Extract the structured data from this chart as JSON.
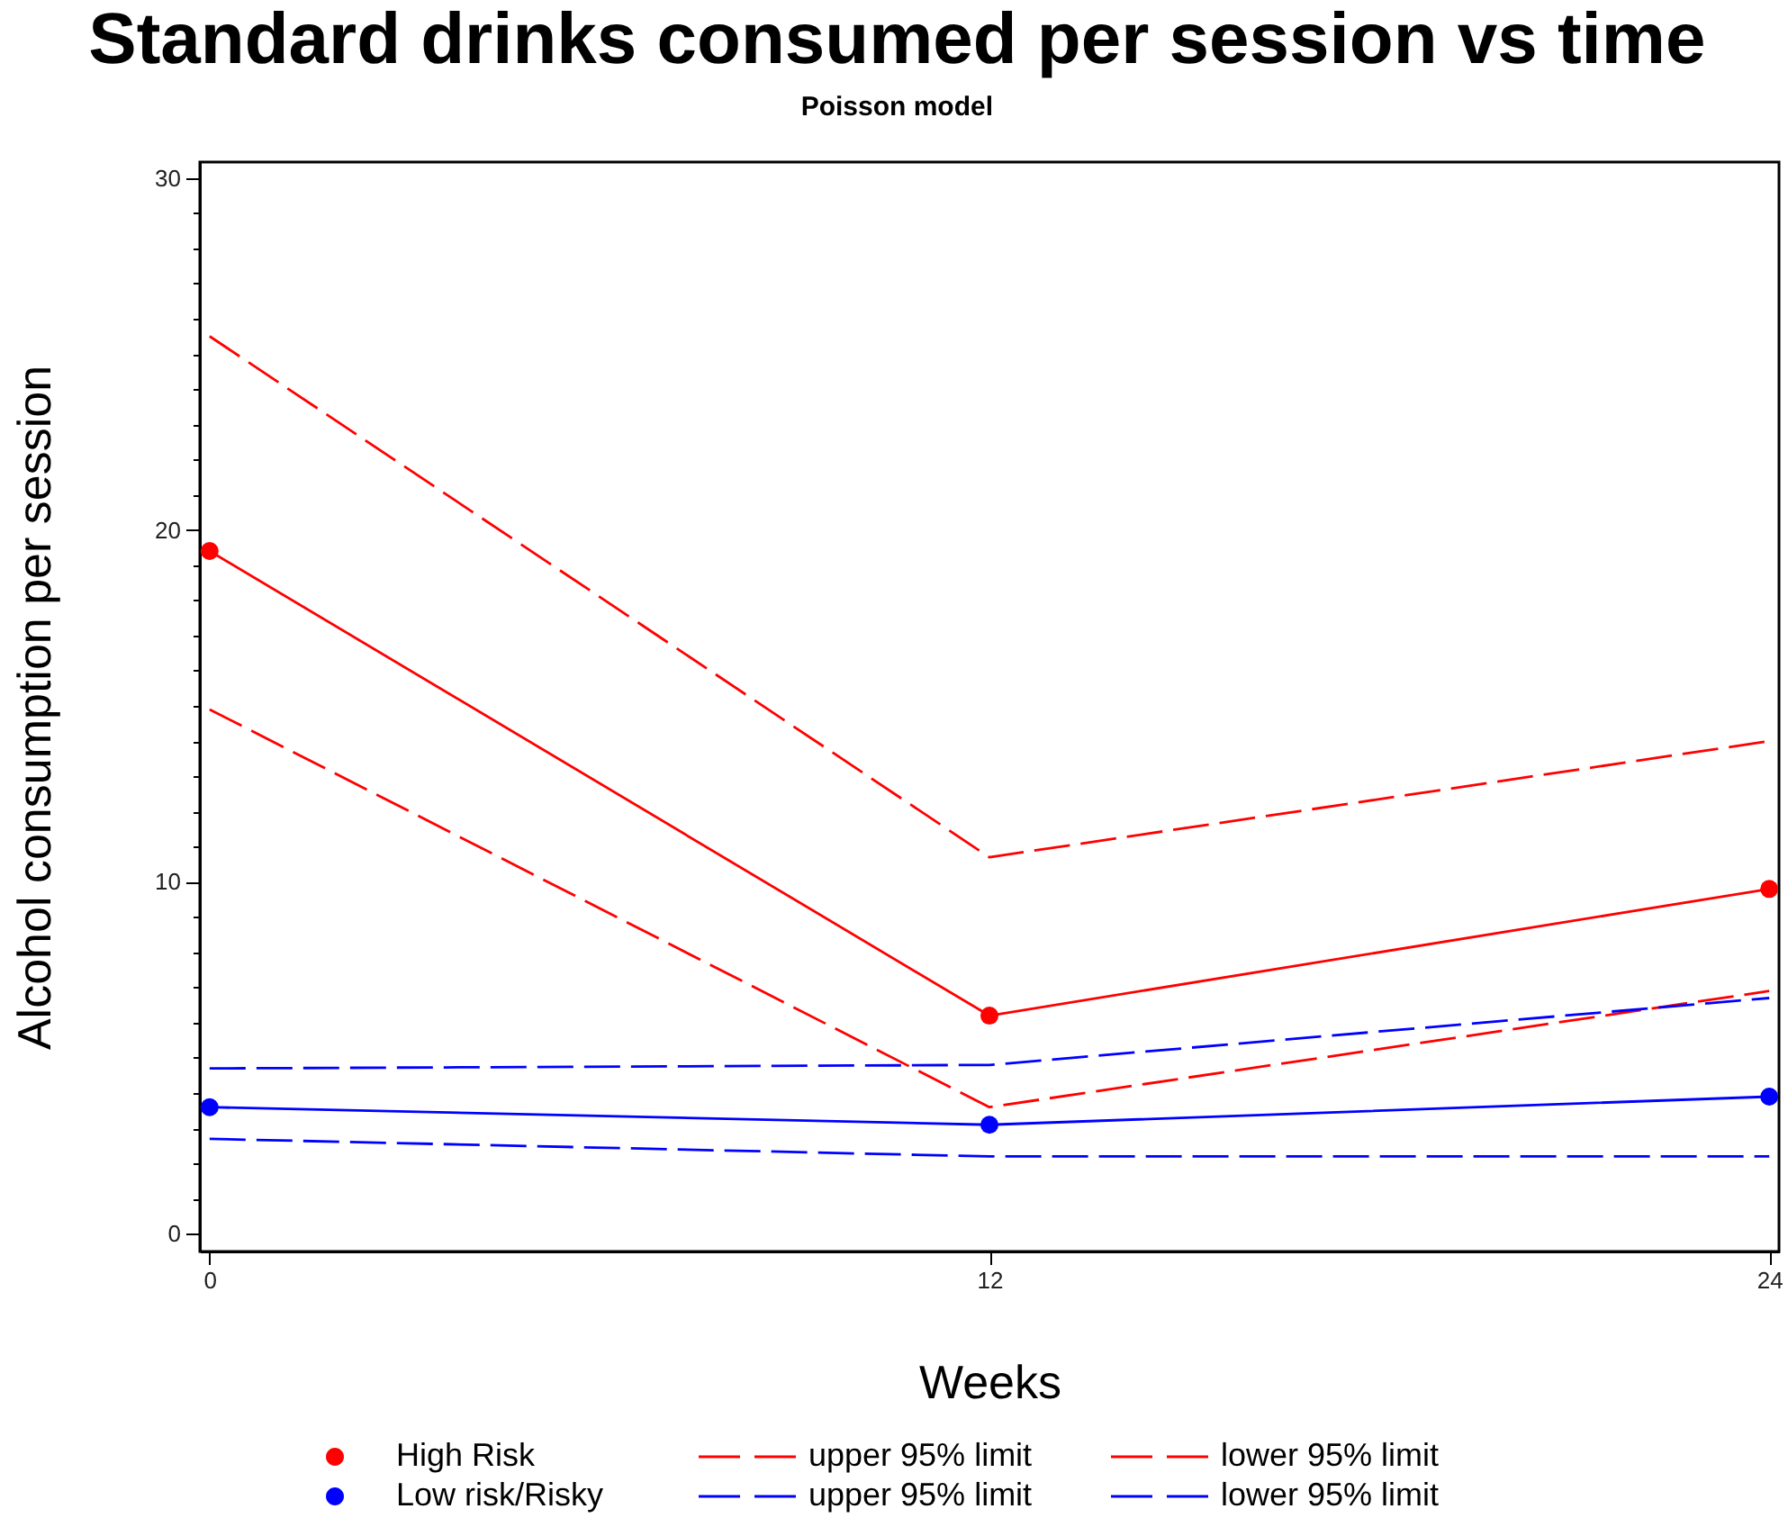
{
  "chart_data": {
    "type": "line",
    "title": "Standard drinks consumed per session vs time",
    "subtitle": "Poisson model",
    "xlabel": "Weeks",
    "ylabel": "Alcohol consumption per session",
    "x": [
      0,
      12,
      24
    ],
    "series": [
      {
        "name": "High Risk",
        "color": "#ff0000",
        "values": [
          19.4,
          6.2,
          9.8
        ],
        "marker": "circle",
        "line_style": "solid"
      },
      {
        "name": "upper 95% limit",
        "color": "#ff0000",
        "values": [
          25.5,
          10.7,
          14.0
        ],
        "marker": "none",
        "line_style": "dashed"
      },
      {
        "name": "lower 95% limit",
        "color": "#ff0000",
        "values": [
          14.9,
          3.6,
          6.9
        ],
        "marker": "none",
        "line_style": "dashed"
      },
      {
        "name": "Low risk/Risky",
        "color": "#0000ff",
        "values": [
          3.6,
          3.1,
          3.9
        ],
        "marker": "circle",
        "line_style": "solid"
      },
      {
        "name": "upper 95% limit",
        "color": "#0000ff",
        "values": [
          4.7,
          4.8,
          6.7
        ],
        "marker": "none",
        "line_style": "dashed"
      },
      {
        "name": "lower 95% limit",
        "color": "#0000ff",
        "values": [
          2.7,
          2.2,
          2.2
        ],
        "marker": "none",
        "line_style": "dashed"
      }
    ],
    "xlim": [
      -0.15,
      24.15
    ],
    "xticks": [
      0,
      12,
      24
    ],
    "ylim": [
      -0.5,
      30.45
    ],
    "yticks": [
      0,
      {
        "value": 1,
        "label": null
      },
      {
        "value": 2,
        "label": null
      },
      {
        "value": 3,
        "label": null
      },
      {
        "value": 4,
        "label": null
      },
      {
        "value": 5,
        "label": null
      },
      {
        "value": 6,
        "label": null
      },
      {
        "value": 7,
        "label": null
      },
      {
        "value": 8,
        "label": null
      },
      {
        "value": 9,
        "label": null
      },
      10,
      {
        "value": 11,
        "label": null
      },
      {
        "value": 12,
        "label": null
      },
      {
        "value": 13,
        "label": null
      },
      {
        "value": 14,
        "label": null
      },
      {
        "value": 15,
        "label": null
      },
      {
        "value": 16,
        "label": null
      },
      {
        "value": 17,
        "label": null
      },
      {
        "value": 18,
        "label": null
      },
      {
        "value": 19,
        "label": null
      },
      20,
      {
        "value": 21,
        "label": null
      },
      {
        "value": 22,
        "label": null
      },
      {
        "value": 23,
        "label": null
      },
      {
        "value": 24,
        "label": null
      },
      {
        "value": 25,
        "label": null
      },
      {
        "value": 26,
        "label": null
      },
      {
        "value": 27,
        "label": null
      },
      {
        "value": 28,
        "label": null
      },
      {
        "value": 29,
        "label": null
      },
      30
    ],
    "grid": false,
    "legend": "bottom"
  }
}
